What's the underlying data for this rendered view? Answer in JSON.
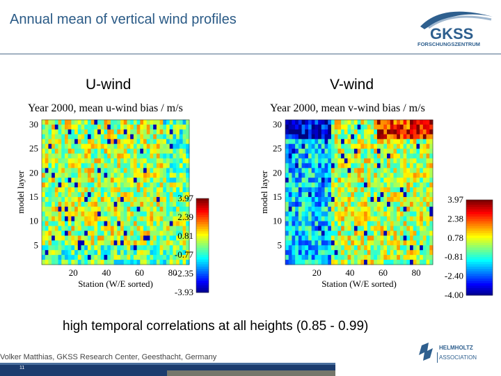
{
  "slide": {
    "title": "Annual mean of vertical wind profiles",
    "caption": "high temporal correlations at all heights (0.85 - 0.99)",
    "footer": "Volker Matthias, GKSS Research Center, Geesthacht, Germany",
    "page_number": "11"
  },
  "logo": {
    "gkss_word": "GKSS",
    "gkss_sub": "FORSCHUNGSZENTRUM",
    "helmholtz_word": "HELMHOLTZ",
    "helmholtz_sub": "ASSOCIATION"
  },
  "colors": {
    "title_blue": "#2a5a86",
    "footer_blue": "#1c3c6e",
    "logo_blue": "#2e5f8e"
  },
  "panels": {
    "u": {
      "label": "U-wind"
    },
    "v": {
      "label": "V-wind"
    }
  },
  "chart_data": [
    {
      "type": "heatmap",
      "title": "Year 2000, mean u-wind bias / m/s",
      "xlabel": "Station (W/E sorted)",
      "ylabel": "model layer",
      "x_range": [
        1,
        90
      ],
      "y_range": [
        1,
        31
      ],
      "x_ticks": [
        20,
        40,
        60,
        80
      ],
      "y_ticks": [
        5,
        10,
        15,
        20,
        25,
        30
      ],
      "colorbar_ticks": [
        "3.97",
        "2.39",
        "0.81",
        "-0.77",
        "-2.35",
        "-3.93"
      ],
      "colorbar_range": [
        -3.93,
        3.97
      ]
    },
    {
      "type": "heatmap",
      "title": "Year 2000, mean v-wind bias / m/s",
      "xlabel": "Station (W/E sorted)",
      "ylabel": "model layer",
      "x_range": [
        1,
        90
      ],
      "y_range": [
        1,
        31
      ],
      "x_ticks": [
        20,
        40,
        60,
        80
      ],
      "y_ticks": [
        5,
        10,
        15,
        20,
        25,
        30
      ],
      "colorbar_ticks": [
        "3.97",
        "2.38",
        "0.78",
        "-0.81",
        "-2.40",
        "-4.00"
      ],
      "colorbar_range": [
        -4.0,
        3.97
      ]
    }
  ]
}
